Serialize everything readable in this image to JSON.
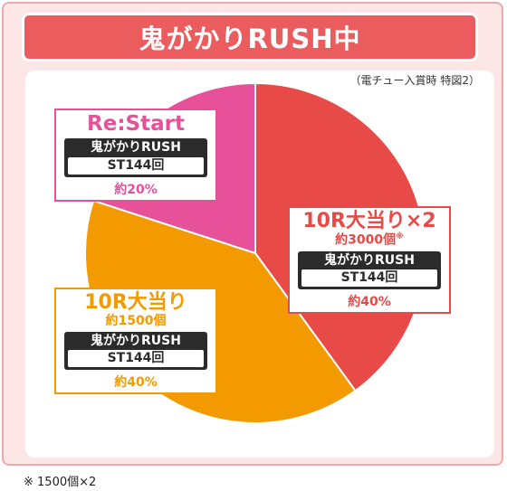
{
  "title": "鬼がかりRUSH中",
  "condition_note": "（電チュー入賞時 特図2）",
  "footnote": "※ 1500個×2",
  "colors": {
    "title_bg": "#ea5c5e",
    "frame_bg": "#fde6e6",
    "slice_red": "#e84a47",
    "slice_orange": "#f39a00",
    "slice_pink": "#e6519a"
  },
  "chart_data": {
    "type": "pie",
    "slices": [
      {
        "name": "10R大当り×2",
        "sub": "約3000個",
        "mark": "※",
        "rush": "鬼がかりRUSH",
        "st": "ST144回",
        "share_label": "約40%",
        "value": 40,
        "color": "#e84a47"
      },
      {
        "name": "10R大当り",
        "sub": "約1500個",
        "rush": "鬼がかりRUSH",
        "st": "ST144回",
        "share_label": "約40%",
        "value": 40,
        "color": "#f39a00"
      },
      {
        "name": "Re:Start",
        "rush": "鬼がかりRUSH",
        "st": "ST144回",
        "share_label": "約20%",
        "value": 20,
        "color": "#e6519a"
      }
    ]
  }
}
